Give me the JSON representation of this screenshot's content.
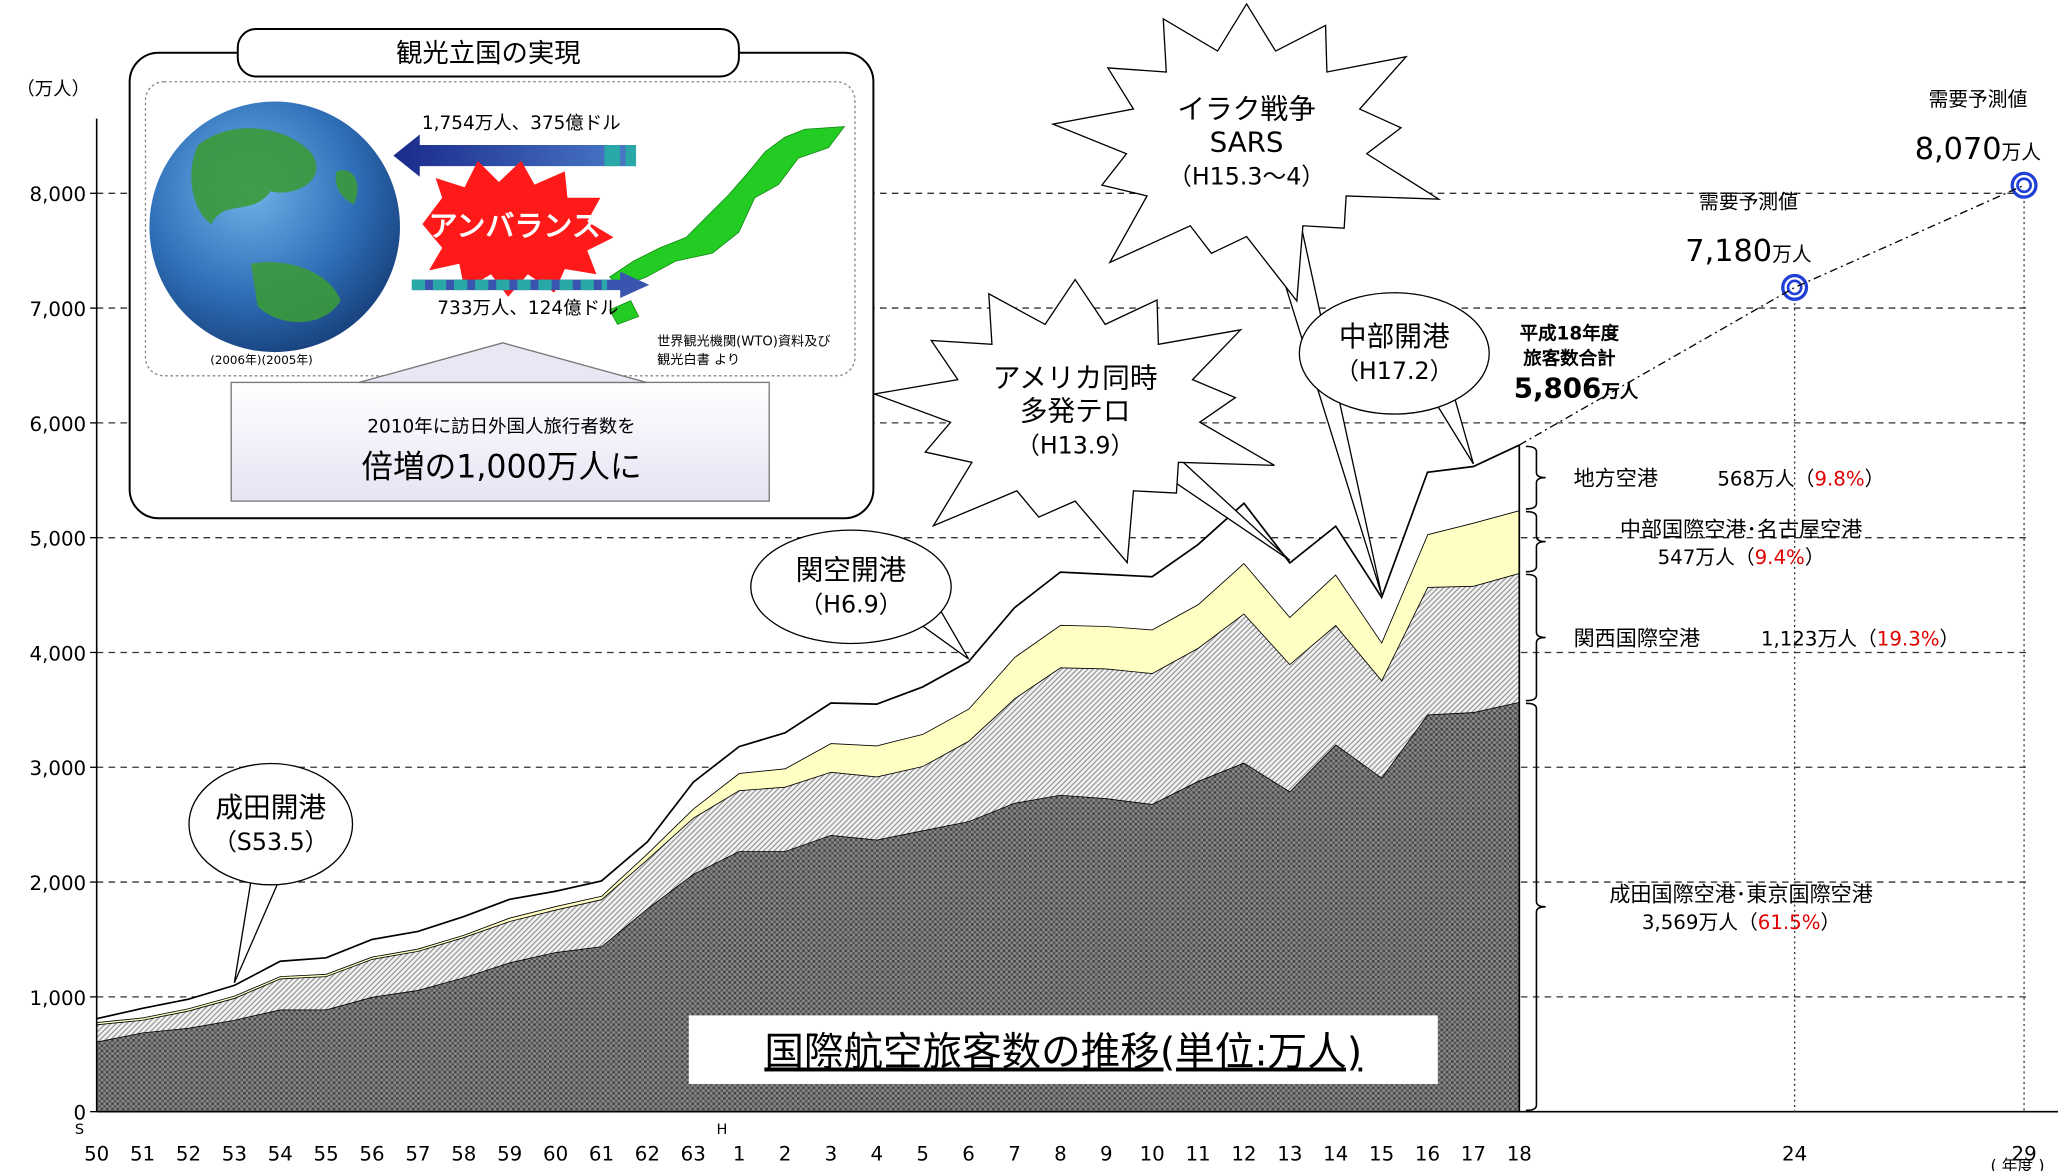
{
  "chart_data": {
    "type": "stacked_area",
    "title": "国際航空旅客数の推移(単位:万人)",
    "y_unit": "（万人）",
    "x_unit": "( 年度 )",
    "categories": [
      "50",
      "51",
      "52",
      "53",
      "54",
      "55",
      "56",
      "57",
      "58",
      "59",
      "60",
      "61",
      "62",
      "63",
      "1",
      "2",
      "3",
      "4",
      "5",
      "6",
      "7",
      "8",
      "9",
      "10",
      "11",
      "12",
      "13",
      "14",
      "15",
      "16",
      "17",
      "18",
      null,
      null,
      null,
      null,
      null,
      "24",
      null,
      null,
      null,
      null,
      "29"
    ],
    "era_marks": [
      {
        "label": "S",
        "category": "50"
      },
      {
        "label": "H",
        "category": "1"
      }
    ],
    "ylim": [
      0,
      8650
    ],
    "yticks": [
      0,
      {
        "value": 1000,
        "label": "1,000"
      },
      {
        "value": 2000,
        "label": "2,000"
      },
      {
        "value": 3000,
        "label": "3,000"
      },
      {
        "value": 4000,
        "label": "4,000"
      },
      {
        "value": 5000,
        "label": "5,000"
      },
      {
        "value": 6000,
        "label": "6,000"
      },
      {
        "value": 7000,
        "label": "7,000"
      },
      {
        "value": 8000,
        "label": "8,000"
      }
    ],
    "grid": true,
    "share_color": "#e00000",
    "series": [
      {
        "name": "成田国際空港･東京国際空港",
        "amount": [
          "3,569万人（",
          "61.5%",
          "）"
        ],
        "color": "#8a8a8a",
        "pattern": "crosshatch",
        "values": [
          610,
          690,
          730,
          800,
          890,
          890,
          1000,
          1060,
          1170,
          1300,
          1390,
          1440,
          1770,
          2070,
          2270,
          2270,
          2410,
          2370,
          2450,
          2530,
          2690,
          2760,
          2730,
          2680,
          2880,
          3040,
          2790,
          3200,
          2910,
          3460,
          3480,
          3569,
          null,
          null,
          null,
          null,
          null,
          null,
          null,
          null,
          null,
          null,
          null
        ]
      },
      {
        "name": "関西国際空港",
        "amount": [
          "1,123万人（",
          "19.3%",
          "）"
        ],
        "color": "#f2f2f2",
        "pattern": "diagonal",
        "values": [
          150,
          110,
          150,
          190,
          270,
          290,
          330,
          340,
          350,
          360,
          370,
          410,
          430,
          490,
          530,
          560,
          550,
          550,
          560,
          700,
          910,
          1110,
          1130,
          1140,
          1160,
          1300,
          1110,
          1040,
          850,
          1110,
          1100,
          1123,
          null,
          null,
          null,
          null,
          null,
          null,
          null,
          null,
          null,
          null,
          null
        ]
      },
      {
        "name": "中部国際空港･名古屋空港",
        "amount": [
          "547万人（",
          "9.4%",
          "）"
        ],
        "color": "#ffffc4",
        "pattern": "none",
        "values": [
          20,
          20,
          20,
          20,
          20,
          20,
          20,
          20,
          20,
          30,
          30,
          30,
          50,
          80,
          150,
          160,
          250,
          270,
          280,
          280,
          360,
          370,
          370,
          380,
          380,
          440,
          410,
          440,
          330,
          460,
          550,
          547,
          null,
          null,
          null,
          null,
          null,
          null,
          null,
          null,
          null,
          null,
          null
        ]
      },
      {
        "name": "地方空港",
        "amount": [
          "568万人（",
          "9.8%",
          "）"
        ],
        "color": "#ffffff",
        "pattern": "none",
        "values": [
          30,
          80,
          80,
          90,
          130,
          140,
          150,
          150,
          160,
          160,
          130,
          130,
          100,
          230,
          230,
          310,
          350,
          360,
          410,
          410,
          430,
          460,
          450,
          460,
          520,
          520,
          470,
          420,
          390,
          540,
          490,
          568,
          null,
          null,
          null,
          null,
          null,
          null,
          null,
          null,
          null,
          null,
          null
        ]
      }
    ],
    "total_label": {
      "lines": [
        "平成18年度",
        "旅客数合計"
      ],
      "value": 5806,
      "value_label": "5,806",
      "unit": "万人"
    },
    "forecast": {
      "label": "需要予測値",
      "unit": "万人",
      "color": "#1f3fd6",
      "points": [
        {
          "category": "24",
          "value": 7180,
          "value_label": "7,180"
        },
        {
          "category": "29",
          "value": 8070,
          "value_label": "8,070"
        }
      ]
    },
    "events": [
      {
        "lines": [
          "成田開港",
          "（S53.5）"
        ],
        "category": "53"
      },
      {
        "lines": [
          "関空開港",
          "（H6.9）"
        ],
        "category": "6"
      },
      {
        "lines": [
          "アメリカ同時",
          "多発テロ",
          "（H13.9）"
        ],
        "category": "13"
      },
      {
        "lines": [
          "イラク戦争",
          "SARS",
          "（H15.3～4）"
        ],
        "category": "15"
      },
      {
        "lines": [
          "中部開港",
          "（H17.2）"
        ],
        "category": "17"
      }
    ]
  },
  "inset": {
    "title": "観光立国の実現",
    "outbound": "1,754万人、375億ドル",
    "imbalance": "アンバランス",
    "inbound": "733万人、124億ドル",
    "years": "(2006年)(2005年)",
    "source": [
      "世界観光機関(WTO)資料及び",
      "観光白書 より"
    ],
    "goal": [
      "2010年に訪日外国人旅行者数を",
      "倍増の1,000万人に"
    ]
  }
}
